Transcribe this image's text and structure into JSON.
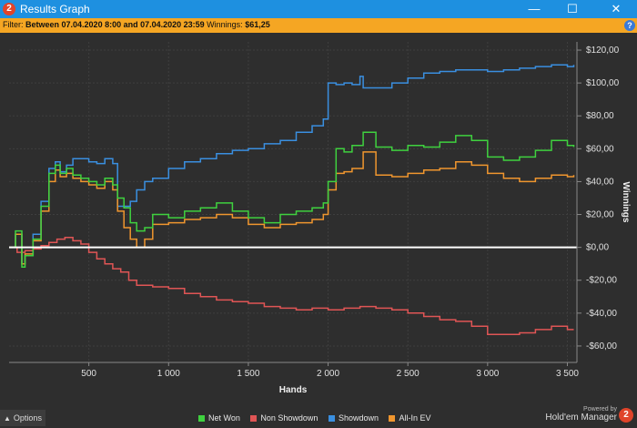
{
  "window": {
    "title": "Results Graph",
    "icon": "app-logo-icon",
    "controls": [
      "minimize-icon",
      "maximize-icon",
      "close-icon"
    ]
  },
  "filter": {
    "label": "Filter:",
    "range": "Between 07.04.2020 8:00 and 07.04.2020 23:59",
    "winnings_label": "Winnings:",
    "winnings_value": "$61,25"
  },
  "options": {
    "label": "Options"
  },
  "brand": {
    "powered": "Powered by",
    "name": "Hold'em Manager"
  },
  "colors": {
    "net_won": "#3fd13f",
    "non_showdown": "#e05555",
    "showdown": "#3a8fe0",
    "all_in_ev": "#f0962e",
    "background": "#2e2e2e",
    "titlebar": "#1e90e0",
    "filterbar": "#f5a623"
  },
  "chart_data": {
    "type": "line",
    "xlabel": "Hands",
    "ylabel": "Winnings",
    "xlim": [
      0,
      3560
    ],
    "ylim": [
      -70,
      125
    ],
    "xticks": [
      500,
      1000,
      1500,
      2000,
      2500,
      3000,
      3500
    ],
    "xtick_labels": [
      "500",
      "1 000",
      "1 500",
      "2 000",
      "2 500",
      "3 000",
      "3 500"
    ],
    "yticks": [
      120,
      100,
      80,
      60,
      40,
      20,
      0,
      -20,
      -40,
      -60
    ],
    "ytick_labels": [
      "$120,00",
      "$100,00",
      "$80,00",
      "$60,00",
      "$40,00",
      "$20,00",
      "$0,00",
      "-$20,00",
      "-$40,00",
      "-$60,00"
    ],
    "grid": true,
    "legend_position": "bottom",
    "series": [
      {
        "name": "Net Won",
        "x": [
          0,
          40,
          80,
          100,
          150,
          200,
          250,
          290,
          320,
          360,
          400,
          450,
          500,
          550,
          600,
          650,
          680,
          720,
          760,
          800,
          850,
          900,
          1000,
          1100,
          1200,
          1300,
          1400,
          1500,
          1600,
          1700,
          1800,
          1900,
          1970,
          2000,
          2050,
          2100,
          2150,
          2200,
          2220,
          2300,
          2400,
          2500,
          2600,
          2700,
          2800,
          2900,
          3000,
          3100,
          3200,
          3300,
          3400,
          3500,
          3540
        ],
        "y": [
          0,
          10,
          -12,
          -5,
          5,
          25,
          45,
          50,
          45,
          48,
          44,
          42,
          40,
          38,
          42,
          38,
          30,
          24,
          15,
          10,
          12,
          20,
          18,
          22,
          24,
          27,
          22,
          18,
          15,
          20,
          22,
          24,
          27,
          40,
          60,
          58,
          62,
          62,
          70,
          61,
          59,
          62,
          61,
          64,
          68,
          65,
          55,
          53,
          55,
          59,
          65,
          62,
          61
        ]
      },
      {
        "name": "Non Showdown",
        "x": [
          0,
          50,
          100,
          150,
          200,
          250,
          300,
          350,
          400,
          450,
          500,
          550,
          600,
          650,
          700,
          750,
          800,
          900,
          1000,
          1100,
          1200,
          1300,
          1400,
          1500,
          1600,
          1700,
          1800,
          1900,
          2000,
          2100,
          2200,
          2300,
          2400,
          2500,
          2600,
          2700,
          2800,
          2900,
          3000,
          3100,
          3200,
          3300,
          3400,
          3500,
          3540
        ],
        "y": [
          0,
          -3,
          -2,
          -1,
          1,
          3,
          5,
          6,
          4,
          2,
          -3,
          -7,
          -10,
          -13,
          -15,
          -20,
          -23,
          -24,
          -25,
          -28,
          -30,
          -32,
          -33,
          -34,
          -36,
          -37,
          -38,
          -37,
          -38,
          -37,
          -36,
          -37,
          -38,
          -40,
          -42,
          -44,
          -45,
          -48,
          -53,
          -53,
          -52,
          -50,
          -48,
          -50,
          -50
        ]
      },
      {
        "name": "Showdown",
        "x": [
          0,
          40,
          80,
          100,
          150,
          200,
          250,
          290,
          320,
          360,
          400,
          450,
          500,
          550,
          600,
          650,
          680,
          720,
          760,
          800,
          850,
          900,
          1000,
          1100,
          1200,
          1300,
          1400,
          1500,
          1600,
          1700,
          1800,
          1900,
          1970,
          2000,
          2050,
          2100,
          2150,
          2200,
          2220,
          2300,
          2400,
          2500,
          2600,
          2700,
          2800,
          2900,
          3000,
          3100,
          3200,
          3300,
          3400,
          3500,
          3540
        ],
        "y": [
          0,
          8,
          -10,
          -5,
          8,
          28,
          48,
          52,
          46,
          50,
          54,
          54,
          52,
          51,
          54,
          51,
          25,
          25,
          28,
          35,
          40,
          42,
          48,
          52,
          54,
          57,
          59,
          60,
          63,
          65,
          70,
          74,
          78,
          100,
          99,
          100,
          99,
          104,
          97,
          97,
          100,
          103,
          106,
          107,
          108,
          108,
          107,
          108,
          109,
          110,
          111,
          110,
          111
        ]
      },
      {
        "name": "All-In EV",
        "x": [
          0,
          40,
          80,
          100,
          150,
          200,
          250,
          290,
          320,
          360,
          400,
          450,
          500,
          550,
          600,
          650,
          680,
          720,
          760,
          800,
          850,
          900,
          1000,
          1100,
          1200,
          1300,
          1400,
          1500,
          1600,
          1700,
          1800,
          1900,
          1970,
          2000,
          2050,
          2100,
          2150,
          2200,
          2220,
          2300,
          2400,
          2500,
          2600,
          2700,
          2800,
          2900,
          3000,
          3100,
          3200,
          3300,
          3400,
          3500,
          3540
        ],
        "y": [
          0,
          8,
          -10,
          -4,
          4,
          22,
          40,
          47,
          43,
          45,
          42,
          40,
          38,
          36,
          40,
          35,
          22,
          12,
          5,
          0,
          5,
          14,
          15,
          17,
          18,
          20,
          18,
          14,
          12,
          14,
          15,
          17,
          20,
          35,
          45,
          46,
          48,
          48,
          58,
          44,
          43,
          45,
          47,
          48,
          52,
          50,
          45,
          42,
          40,
          42,
          44,
          43,
          44
        ]
      }
    ]
  }
}
